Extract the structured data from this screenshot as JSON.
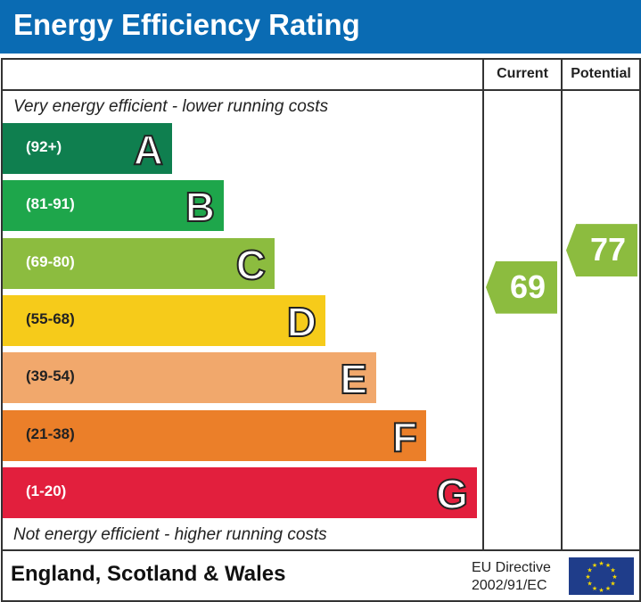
{
  "title": "Energy Efficiency Rating",
  "chart_data": {
    "type": "bar",
    "title": "Energy Efficiency Rating",
    "categories": [
      "A",
      "B",
      "C",
      "D",
      "E",
      "F",
      "G"
    ],
    "ranges": [
      "(92+)",
      "(81-91)",
      "(69-80)",
      "(55-68)",
      "(39-54)",
      "(21-38)",
      "(1-20)"
    ],
    "colors": [
      "#0f7f4f",
      "#1ea64b",
      "#8cbc3f",
      "#f6cb1a",
      "#f1a86c",
      "#eb7f29",
      "#e21f3d"
    ],
    "columns": {
      "current": "Current",
      "potential": "Potential"
    },
    "current": {
      "value": 69,
      "band": "C",
      "color": "#8cbc3f"
    },
    "potential": {
      "value": 77,
      "band": "C",
      "color": "#8cbc3f"
    },
    "top_note": "Very energy efficient - lower running costs",
    "bottom_note": "Not energy efficient - higher running costs"
  },
  "footer": {
    "region": "England, Scotland & Wales",
    "directive_line1": "EU Directive",
    "directive_line2": "2002/91/EC",
    "flag": "eu-flag-icon"
  },
  "header_color": "#0a6bb3"
}
